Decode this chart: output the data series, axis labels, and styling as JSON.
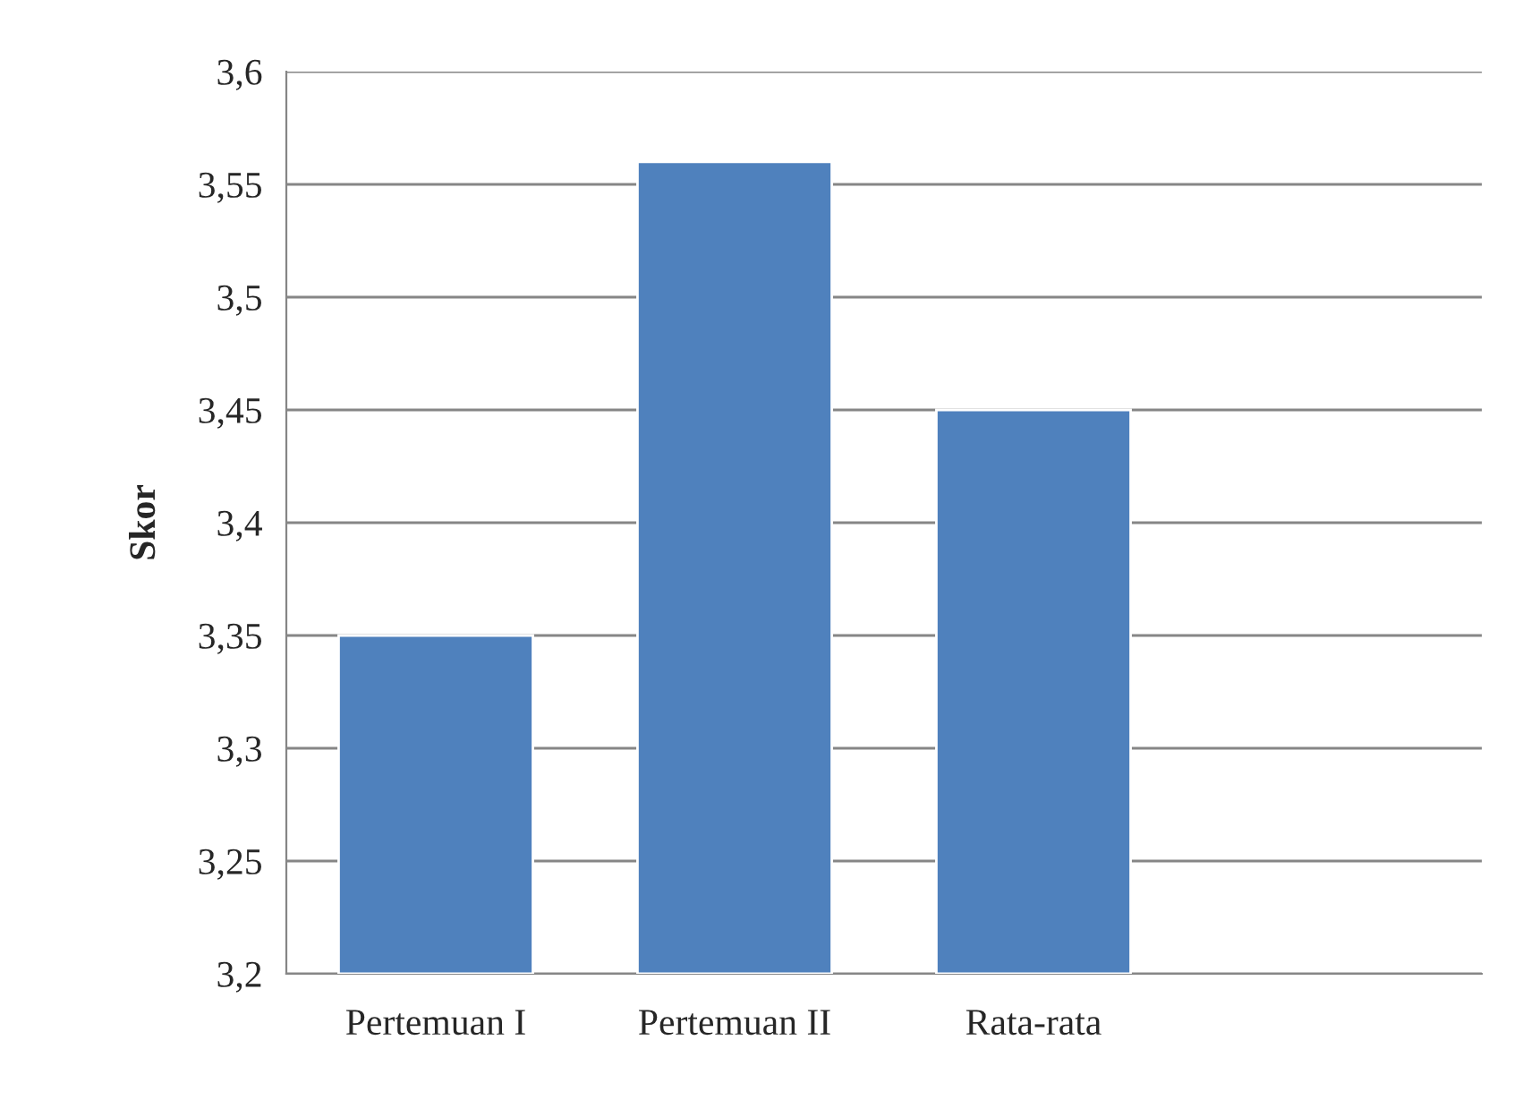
{
  "chart_data": {
    "type": "bar",
    "ylabel": "Skor",
    "categories": [
      "Pertemuan I",
      "Pertemuan II",
      "Rata-rata",
      null
    ],
    "values": [
      3.35,
      3.56,
      3.45,
      null
    ],
    "color": "#4f81bd",
    "ylim": [
      3.2,
      3.6
    ],
    "yticks": [
      {
        "value": 3.2,
        "label": "3,2"
      },
      {
        "value": 3.25,
        "label": "3,25"
      },
      {
        "value": 3.3,
        "label": "3,3"
      },
      {
        "value": 3.35,
        "label": "3,35"
      },
      {
        "value": 3.4,
        "label": "3,4"
      },
      {
        "value": 3.45,
        "label": "3,45"
      },
      {
        "value": 3.5,
        "label": "3,5"
      },
      {
        "value": 3.55,
        "label": "3,55"
      },
      {
        "value": 3.6,
        "label": "3,6"
      }
    ],
    "grid": "y",
    "legend": false
  }
}
